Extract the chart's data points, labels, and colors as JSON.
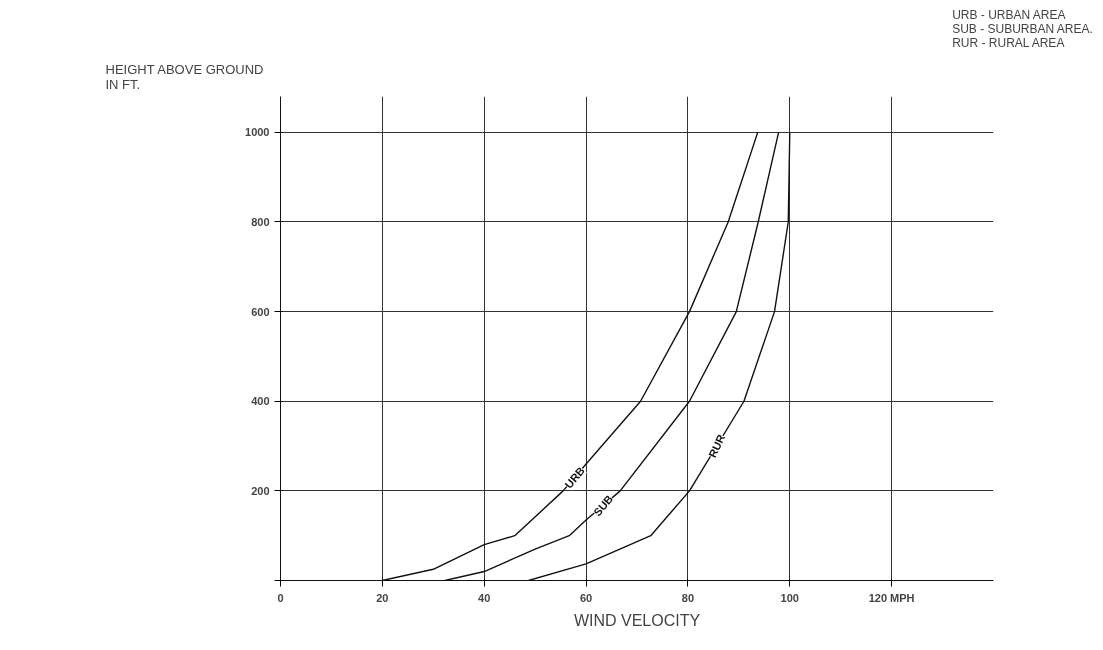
{
  "chart_data": {
    "type": "line",
    "xlabel": "WIND VELOCITY",
    "ylabel": "HEIGHT ABOVE GROUND\nIN FT.",
    "annotations": [
      "URB - URBAN AREA",
      "SUB - SUBURBAN AREA.",
      "RUR - RURAL AREA"
    ],
    "xlim": [
      0,
      140
    ],
    "ylim": [
      0,
      1080
    ],
    "xticks": [
      {
        "value": 0,
        "label": "0"
      },
      20,
      40,
      60,
      80,
      100,
      {
        "value": 120,
        "label": "120 MPH"
      }
    ],
    "yticks": [
      {
        "value": 0,
        "label": null
      },
      200,
      400,
      600,
      800,
      1000
    ],
    "grid": true,
    "marker": "none",
    "line_style": "solid",
    "series": [
      {
        "name": "URB",
        "color": "#111111",
        "x": [
          20,
          30,
          40,
          46,
          55.5,
          60,
          70.7,
          80.3,
          87.9,
          93.7
        ],
        "values": [
          0,
          25,
          80,
          100,
          200,
          260,
          400,
          600,
          800,
          1000
        ]
      },
      {
        "name": "SUB",
        "color": "#111111",
        "x": [
          32.3,
          40,
          50,
          56.7,
          60,
          66.7,
          80.3,
          89.5,
          93.8,
          97.8
        ],
        "values": [
          0,
          20,
          70,
          100,
          135,
          200,
          400,
          600,
          800,
          1000
        ]
      },
      {
        "name": "RUR",
        "color": "#111111",
        "x": [
          48.7,
          60,
          72.7,
          80.3,
          91,
          97,
          99.7,
          100
        ],
        "values": [
          0,
          37,
          100,
          200,
          400,
          600,
          800,
          1000
        ]
      }
    ]
  }
}
